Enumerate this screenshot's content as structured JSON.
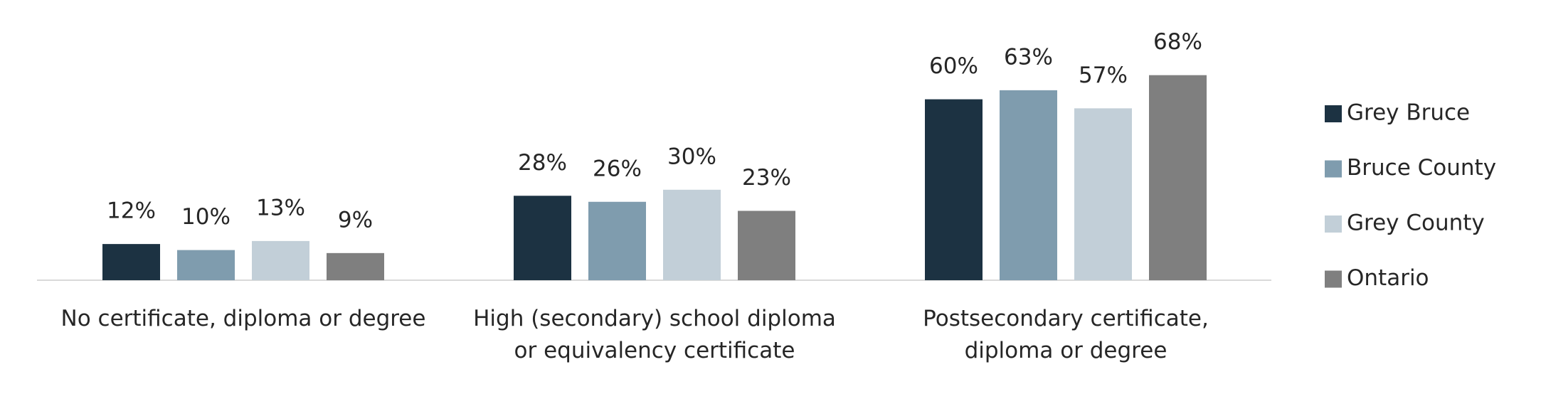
{
  "chart_data": {
    "type": "bar",
    "categories": [
      "No certificate, diploma or degree",
      "High (secondary) school diploma\nor equivalency certificate",
      "Postsecondary certificate,\ndiploma or degree"
    ],
    "series": [
      {
        "name": "Grey Bruce",
        "color": "#1c3242",
        "values": [
          12,
          28,
          60
        ],
        "value_labels": [
          "12%",
          "28%",
          "60%"
        ]
      },
      {
        "name": "Bruce County",
        "color": "#7f9cae",
        "values": [
          10,
          26,
          63
        ],
        "value_labels": [
          "10%",
          "26%",
          "63%"
        ]
      },
      {
        "name": "Grey County",
        "color": "#c2cfd8",
        "values": [
          13,
          30,
          57
        ],
        "value_labels": [
          "13%",
          "30%",
          "57%"
        ]
      },
      {
        "name": "Ontario",
        "color": "#7f7f7f",
        "values": [
          9,
          23,
          68
        ],
        "value_labels": [
          "9%",
          "23%",
          "68%"
        ]
      }
    ],
    "legend": "right"
  }
}
